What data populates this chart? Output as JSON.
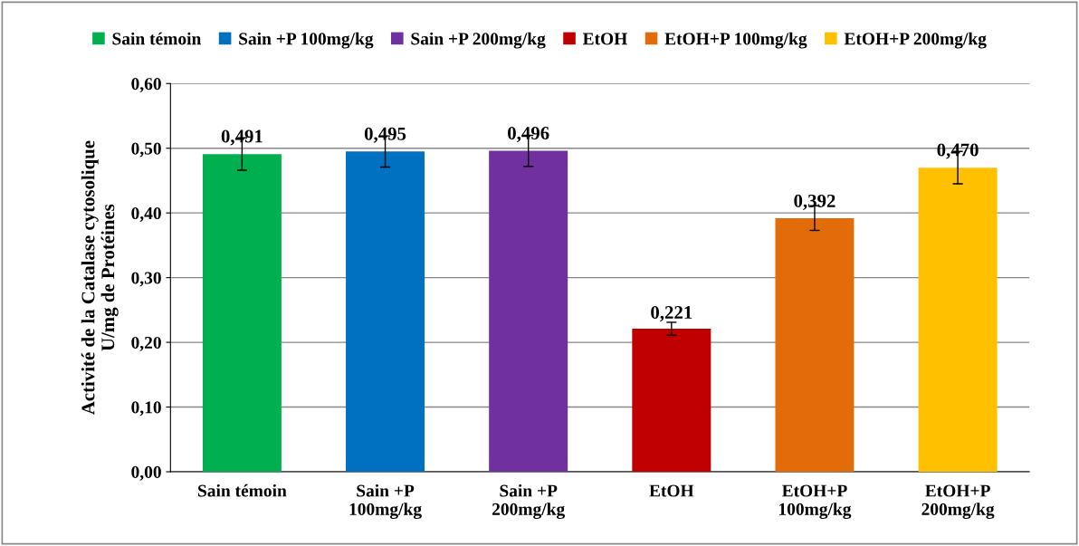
{
  "chart_data": {
    "type": "bar",
    "ylabel": "Activité de la Catalase cytosolique\nU/mg de Protéines",
    "categories": [
      "Sain témoin",
      "Sain +P 100mg/kg",
      "Sain +P 200mg/kg",
      "EtOH",
      "EtOH+P 100mg/kg",
      "EtOH+P 200mg/kg"
    ],
    "series": [
      {
        "name": "Sain témoin",
        "color": "#00b050",
        "values": [
          0.491,
          null,
          null,
          null,
          null,
          null
        ],
        "errors": [
          0.025,
          null,
          null,
          null,
          null,
          null
        ],
        "value_labels": [
          "0,491",
          null,
          null,
          null,
          null,
          null
        ]
      },
      {
        "name": "Sain +P 100mg/kg",
        "color": "#0070c0",
        "values": [
          null,
          0.495,
          null,
          null,
          null,
          null
        ],
        "errors": [
          null,
          0.024,
          null,
          null,
          null,
          null
        ],
        "value_labels": [
          null,
          "0,495",
          null,
          null,
          null,
          null
        ]
      },
      {
        "name": "Sain +P 200mg/kg",
        "color": "#7030a0",
        "values": [
          null,
          null,
          0.496,
          null,
          null,
          null
        ],
        "errors": [
          null,
          null,
          0.024,
          null,
          null,
          null
        ],
        "value_labels": [
          null,
          null,
          "0,496",
          null,
          null,
          null
        ]
      },
      {
        "name": "EtOH",
        "color": "#c00000",
        "values": [
          null,
          null,
          null,
          0.221,
          null,
          null
        ],
        "errors": [
          null,
          null,
          null,
          0.01,
          null,
          null
        ],
        "value_labels": [
          null,
          null,
          null,
          "0,221",
          null,
          null
        ]
      },
      {
        "name": "EtOH+P 100mg/kg",
        "color": "#e36c0a",
        "values": [
          null,
          null,
          null,
          null,
          0.392,
          null
        ],
        "errors": [
          null,
          null,
          null,
          null,
          0.019,
          null
        ],
        "value_labels": [
          null,
          null,
          null,
          null,
          "0,392",
          null
        ]
      },
      {
        "name": "EtOH+P 200mg/kg",
        "color": "#ffc000",
        "values": [
          null,
          null,
          null,
          null,
          null,
          0.47
        ],
        "errors": [
          null,
          null,
          null,
          null,
          null,
          0.025
        ],
        "value_labels": [
          null,
          null,
          null,
          null,
          null,
          "0,470"
        ]
      }
    ],
    "ylim": [
      0,
      0.6
    ],
    "yticks": [
      {
        "value": 0,
        "label": "0,00"
      },
      {
        "value": 0.1,
        "label": "0,10"
      },
      {
        "value": 0.2,
        "label": "0,20"
      },
      {
        "value": 0.3,
        "label": "0,30"
      },
      {
        "value": 0.4,
        "label": "0,40"
      },
      {
        "value": 0.5,
        "label": "0,50"
      },
      {
        "value": 0.6,
        "label": "0,60"
      }
    ],
    "grid": "y",
    "legend": "top"
  }
}
